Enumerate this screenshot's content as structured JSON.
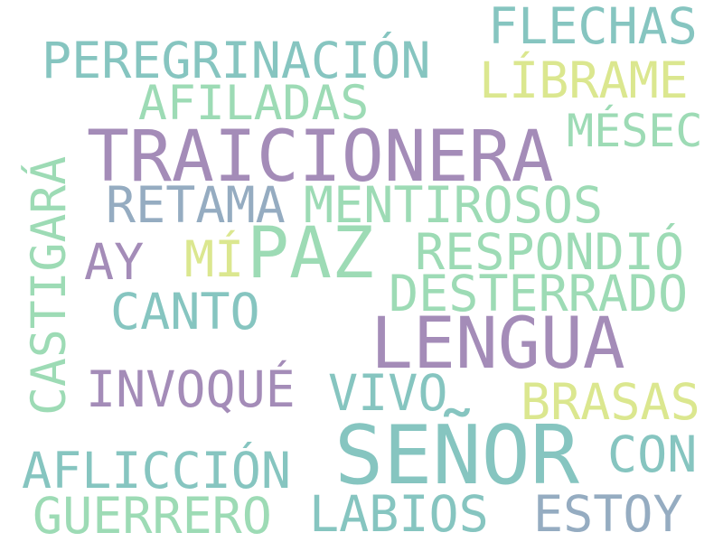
{
  "colors": {
    "purple": "#a48cb8",
    "teal": "#86c5c0",
    "mint": "#9ddbb5",
    "yellow": "#dbe78f",
    "slate": "#95acc1"
  },
  "words": [
    "FLECHAS",
    "PEREGRINACIÓN",
    "LÍBRAME",
    "AFILADAS",
    "MÉSEC",
    "TRAICIONERA",
    "CASTIGARÁ",
    "RETAMA",
    "MENTIROSOS",
    "AY",
    "MÍ",
    "PAZ",
    "RESPONDIÓ",
    "DESTERRADO",
    "CANTO",
    "LENGUA",
    "INVOQUÉ",
    "VIVO",
    "BRASAS",
    "SEÑOR",
    "CON",
    "AFLICCIÓN",
    "GUERRERO",
    "LABIOS",
    "ESTOY"
  ]
}
